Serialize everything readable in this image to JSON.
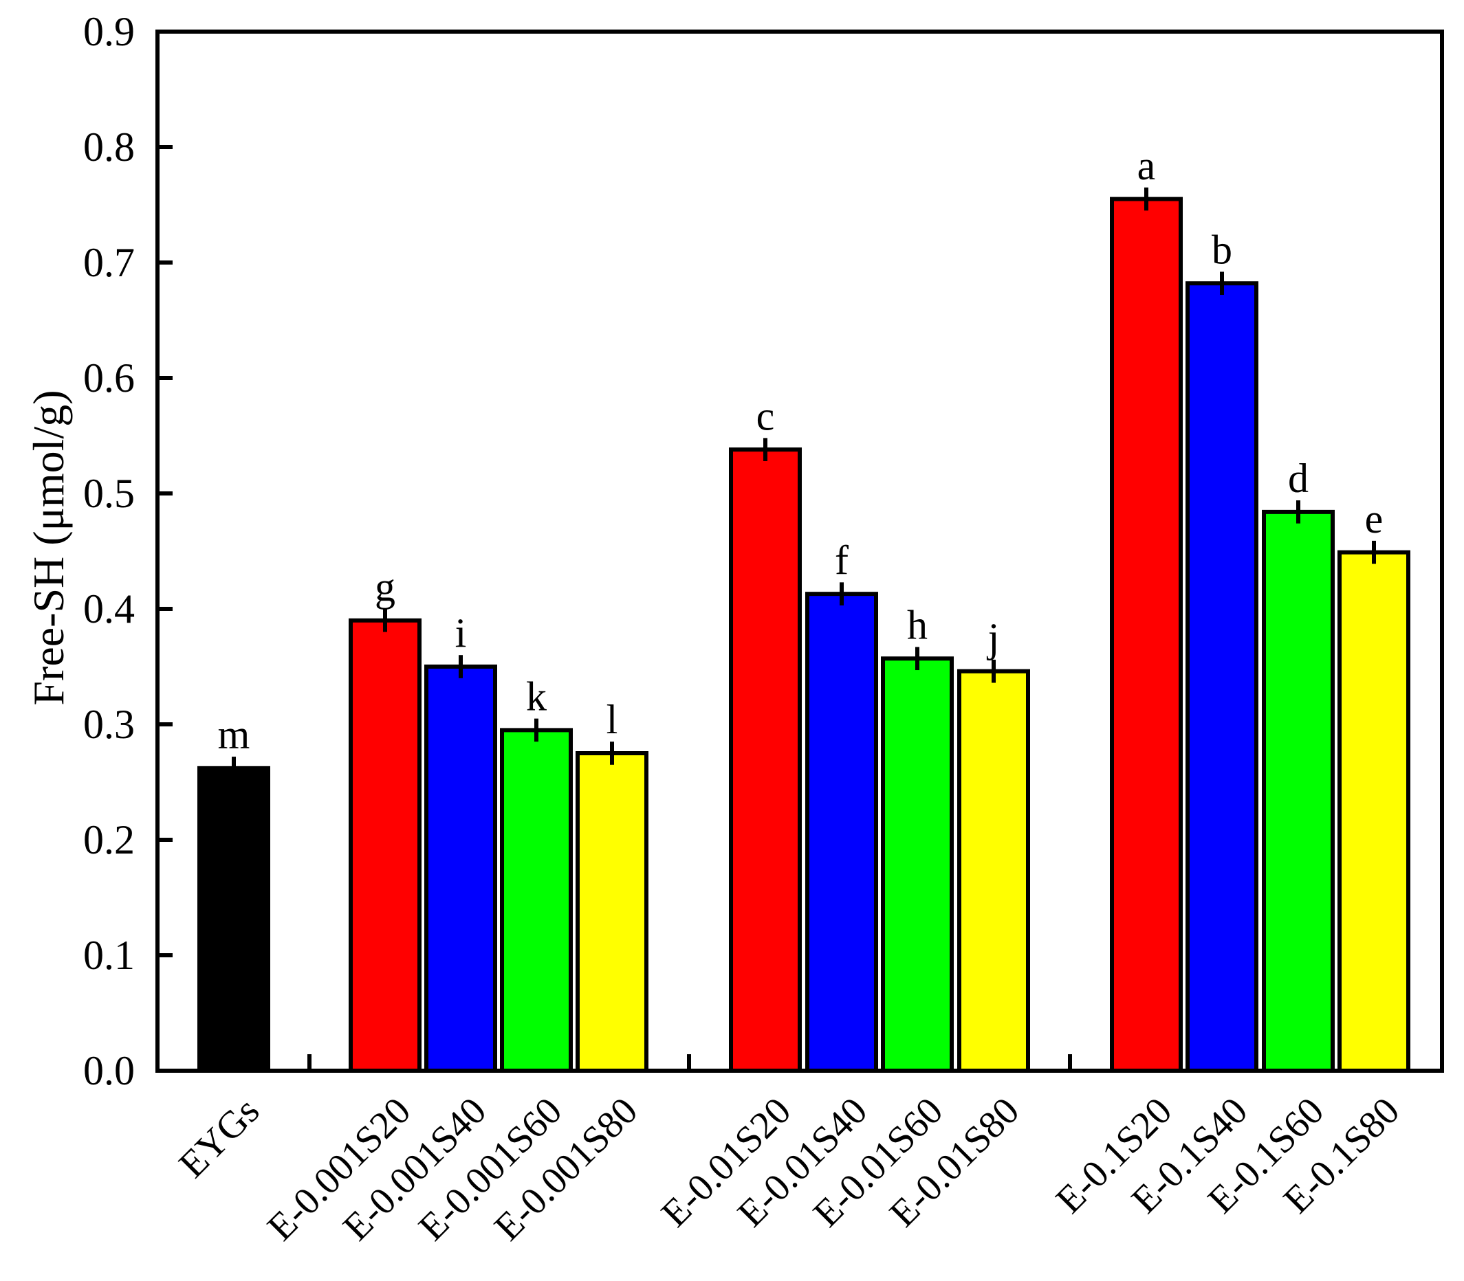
{
  "chart_data": {
    "type": "bar",
    "title": "",
    "xlabel": "",
    "ylabel": "Free-SH (μmol/g)",
    "ylim": [
      0,
      0.9
    ],
    "yticks": [
      "0.0",
      "0.1",
      "0.2",
      "0.3",
      "0.4",
      "0.5",
      "0.6",
      "0.7",
      "0.8",
      "0.9"
    ],
    "grid": false,
    "legend": "none",
    "groups": [
      {
        "bars": [
          {
            "label": "EYGs",
            "value": 0.262,
            "error": 0.01,
            "letter": "m",
            "color": "#000000"
          }
        ]
      },
      {
        "bars": [
          {
            "label": "E-0.001S20",
            "value": 0.39,
            "error": 0.01,
            "letter": "g",
            "color": "#ff0000"
          },
          {
            "label": "E-0.001S40",
            "value": 0.35,
            "error": 0.01,
            "letter": "i",
            "color": "#0000ff"
          },
          {
            "label": "E-0.001S60",
            "value": 0.295,
            "error": 0.01,
            "letter": "k",
            "color": "#00ff00"
          },
          {
            "label": "E-0.001S80",
            "value": 0.275,
            "error": 0.01,
            "letter": "l",
            "color": "#ffff00"
          }
        ]
      },
      {
        "bars": [
          {
            "label": "E-0.01S20",
            "value": 0.538,
            "error": 0.01,
            "letter": "c",
            "color": "#ff0000"
          },
          {
            "label": "E-0.01S40",
            "value": 0.413,
            "error": 0.01,
            "letter": "f",
            "color": "#0000ff"
          },
          {
            "label": "E-0.01S60",
            "value": 0.357,
            "error": 0.01,
            "letter": "h",
            "color": "#00ff00"
          },
          {
            "label": "E-0.01S80",
            "value": 0.346,
            "error": 0.01,
            "letter": "j",
            "color": "#ffff00"
          }
        ]
      },
      {
        "bars": [
          {
            "label": "E-0.1S20",
            "value": 0.755,
            "error": 0.01,
            "letter": "a",
            "color": "#ff0000"
          },
          {
            "label": "E-0.1S40",
            "value": 0.682,
            "error": 0.01,
            "letter": "b",
            "color": "#0000ff"
          },
          {
            "label": "E-0.1S60",
            "value": 0.484,
            "error": 0.01,
            "letter": "d",
            "color": "#00ff00"
          },
          {
            "label": "E-0.1S80",
            "value": 0.449,
            "error": 0.01,
            "letter": "e",
            "color": "#ffff00"
          }
        ]
      }
    ]
  }
}
